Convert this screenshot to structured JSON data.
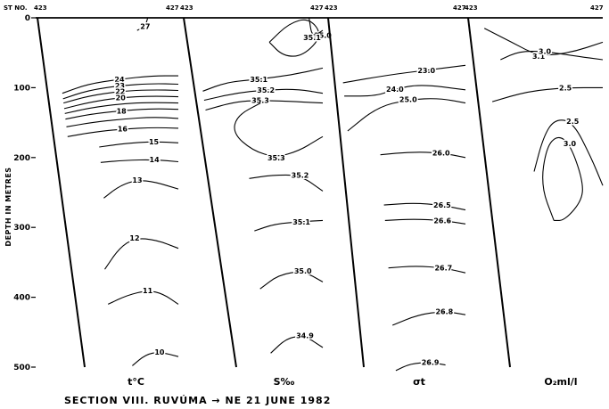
{
  "chart_data": {
    "type": "line",
    "title": "SECTION VIII.  RUVÚMA → NE   21 JUNE 1982",
    "st_label": "ST NO.",
    "ylabel": "DEPTH IN METRES",
    "y_ticks": [
      "0",
      "100",
      "200",
      "300",
      "400",
      "500"
    ],
    "ylim": [
      0,
      500
    ],
    "y_inverted": true,
    "grid": false,
    "stations": [
      "423",
      "427"
    ],
    "panels": [
      {
        "label": "t°C",
        "contours": [
          {
            "label": "27",
            "points": [
              [
                0.78,
                0
              ],
              [
                0.76,
                12
              ],
              [
                0.7,
                18
              ]
            ]
          },
          {
            "label": "24",
            "points": [
              [
                0.1,
                108
              ],
              [
                0.3,
                95
              ],
              [
                0.55,
                88
              ],
              [
                0.8,
                83
              ],
              [
                1.0,
                83
              ]
            ]
          },
          {
            "label": "23",
            "points": [
              [
                0.1,
                116
              ],
              [
                0.3,
                104
              ],
              [
                0.55,
                97
              ],
              [
                0.8,
                94
              ],
              [
                1.0,
                95
              ]
            ]
          },
          {
            "label": "22",
            "points": [
              [
                0.1,
                122
              ],
              [
                0.3,
                112
              ],
              [
                0.55,
                105
              ],
              [
                0.8,
                103
              ],
              [
                1.0,
                104
              ]
            ]
          },
          {
            "label": "20",
            "points": [
              [
                0.1,
                130
              ],
              [
                0.3,
                121
              ],
              [
                0.55,
                114
              ],
              [
                0.8,
                112
              ],
              [
                1.0,
                113
              ]
            ]
          },
          {
            "label": "",
            "points": [
              [
                0.1,
                137
              ],
              [
                0.3,
                129
              ],
              [
                0.55,
                123
              ],
              [
                0.8,
                121
              ],
              [
                1.0,
                122
              ]
            ]
          },
          {
            "label": "18",
            "points": [
              [
                0.1,
                145
              ],
              [
                0.3,
                138
              ],
              [
                0.55,
                133
              ],
              [
                0.8,
                130
              ],
              [
                1.0,
                131
              ]
            ]
          },
          {
            "label": "",
            "points": [
              [
                0.1,
                156
              ],
              [
                0.3,
                150
              ],
              [
                0.55,
                145
              ],
              [
                0.8,
                142
              ],
              [
                1.0,
                144
              ]
            ]
          },
          {
            "label": "16",
            "points": [
              [
                0.1,
                170
              ],
              [
                0.3,
                164
              ],
              [
                0.55,
                159
              ],
              [
                0.8,
                157
              ],
              [
                1.0,
                158
              ]
            ]
          },
          {
            "label": "15",
            "points": [
              [
                0.35,
                185
              ],
              [
                0.55,
                180
              ],
              [
                0.8,
                177
              ],
              [
                1.0,
                179
              ]
            ]
          },
          {
            "label": "14",
            "points": [
              [
                0.35,
                207
              ],
              [
                0.55,
                204
              ],
              [
                0.8,
                203
              ],
              [
                1.0,
                206
              ]
            ]
          },
          {
            "label": "13",
            "points": [
              [
                0.35,
                258
              ],
              [
                0.5,
                240
              ],
              [
                0.65,
                232
              ],
              [
                0.8,
                235
              ],
              [
                1.0,
                245
              ]
            ]
          },
          {
            "label": "12",
            "points": [
              [
                0.3,
                360
              ],
              [
                0.45,
                330
              ],
              [
                0.6,
                315
              ],
              [
                0.8,
                318
              ],
              [
                1.0,
                330
              ]
            ]
          },
          {
            "label": "11",
            "points": [
              [
                0.3,
                410
              ],
              [
                0.5,
                397
              ],
              [
                0.7,
                390
              ],
              [
                0.85,
                395
              ],
              [
                1.0,
                410
              ]
            ]
          },
          {
            "label": "10",
            "points": [
              [
                0.5,
                498
              ],
              [
                0.65,
                482
              ],
              [
                0.8,
                478
              ],
              [
                1.0,
                485
              ]
            ]
          }
        ]
      },
      {
        "label": "S‰",
        "contours": [
          {
            "label": "35.0",
            "points": [
              [
                0.6,
                35
              ],
              [
                0.75,
                8
              ],
              [
                0.9,
                0
              ],
              [
                1.0,
                25
              ],
              [
                0.85,
                55
              ],
              [
                0.7,
                55
              ],
              [
                0.6,
                35
              ]
            ]
          },
          {
            "label": "35.1",
            "points": [
              [
                1.0,
                18
              ],
              [
                0.92,
                28
              ],
              [
                0.9,
                0
              ]
            ]
          },
          {
            "label": "35.1",
            "points": [
              [
                0.05,
                105
              ],
              [
                0.25,
                92
              ],
              [
                0.5,
                88
              ],
              [
                0.75,
                82
              ],
              [
                1.0,
                72
              ]
            ]
          },
          {
            "label": "35.2",
            "points": [
              [
                0.05,
                118
              ],
              [
                0.3,
                108
              ],
              [
                0.55,
                103
              ],
              [
                0.8,
                102
              ],
              [
                1.0,
                108
              ]
            ]
          },
          {
            "label": "35.3",
            "points": [
              [
                0.05,
                132
              ],
              [
                0.3,
                120
              ],
              [
                0.5,
                118
              ],
              [
                0.8,
                120
              ],
              [
                1.0,
                122
              ]
            ]
          },
          {
            "label": "35.3",
            "points": [
              [
                0.5,
                122
              ],
              [
                0.3,
                140
              ],
              [
                0.25,
                165
              ],
              [
                0.4,
                190
              ],
              [
                0.6,
                200
              ],
              [
                0.8,
                190
              ],
              [
                0.95,
                175
              ],
              [
                1.0,
                170
              ]
            ]
          },
          {
            "label": "35.2",
            "points": [
              [
                0.35,
                230
              ],
              [
                0.55,
                225
              ],
              [
                0.8,
                225
              ],
              [
                1.0,
                248
              ]
            ]
          },
          {
            "label": "35.1",
            "points": [
              [
                0.35,
                305
              ],
              [
                0.55,
                295
              ],
              [
                0.8,
                292
              ],
              [
                1.0,
                290
              ]
            ]
          },
          {
            "label": "35.0",
            "points": [
              [
                0.35,
                388
              ],
              [
                0.55,
                368
              ],
              [
                0.8,
                362
              ],
              [
                1.0,
                378
              ]
            ]
          },
          {
            "label": "34.9",
            "points": [
              [
                0.4,
                480
              ],
              [
                0.6,
                458
              ],
              [
                0.8,
                455
              ],
              [
                1.0,
                472
              ]
            ]
          }
        ]
      },
      {
        "label": "σt",
        "contours": [
          {
            "label": "23.0",
            "points": [
              [
                0.05,
                93
              ],
              [
                0.4,
                82
              ],
              [
                0.7,
                75
              ],
              [
                1.0,
                68
              ]
            ]
          },
          {
            "label": "24.0",
            "points": [
              [
                0.05,
                112
              ],
              [
                0.3,
                112
              ],
              [
                0.45,
                102
              ],
              [
                0.65,
                95
              ],
              [
                1.0,
                103
              ]
            ]
          },
          {
            "label": "25.0",
            "points": [
              [
                0.05,
                162
              ],
              [
                0.3,
                128
              ],
              [
                0.55,
                117
              ],
              [
                0.8,
                115
              ],
              [
                1.0,
                122
              ]
            ]
          },
          {
            "label": "26.0",
            "points": [
              [
                0.3,
                196
              ],
              [
                0.55,
                192
              ],
              [
                0.8,
                193
              ],
              [
                1.0,
                200
              ]
            ]
          },
          {
            "label": "26.5",
            "points": [
              [
                0.3,
                268
              ],
              [
                0.55,
                265
              ],
              [
                0.8,
                268
              ],
              [
                1.0,
                275
              ]
            ]
          },
          {
            "label": "26.6",
            "points": [
              [
                0.3,
                290
              ],
              [
                0.55,
                288
              ],
              [
                0.8,
                290
              ],
              [
                1.0,
                295
              ]
            ]
          },
          {
            "label": "26.7",
            "points": [
              [
                0.3,
                358
              ],
              [
                0.55,
                355
              ],
              [
                0.8,
                358
              ],
              [
                1.0,
                365
              ]
            ]
          },
          {
            "label": "26.8",
            "points": [
              [
                0.3,
                440
              ],
              [
                0.55,
                425
              ],
              [
                0.8,
                420
              ],
              [
                1.0,
                425
              ]
            ]
          },
          {
            "label": "26.9",
            "points": [
              [
                0.3,
                505
              ],
              [
                0.45,
                495
              ],
              [
                0.65,
                493
              ],
              [
                0.8,
                497
              ]
            ]
          }
        ]
      },
      {
        "label": "O₂ml/l",
        "contours": [
          {
            "label": "3.1",
            "points": [
              [
                0.1,
                15
              ],
              [
                0.3,
                35
              ],
              [
                0.5,
                55
              ],
              [
                0.75,
                50
              ],
              [
                1.0,
                35
              ]
            ]
          },
          {
            "label": "3.0",
            "points": [
              [
                0.2,
                60
              ],
              [
                0.35,
                48
              ],
              [
                0.55,
                48
              ],
              [
                0.8,
                55
              ],
              [
                1.0,
                60
              ]
            ]
          },
          {
            "label": "2.5",
            "points": [
              [
                0.1,
                120
              ],
              [
                0.4,
                105
              ],
              [
                0.7,
                100
              ],
              [
                1.0,
                100
              ]
            ]
          },
          {
            "label": "2.5",
            "points": [
              [
                0.4,
                220
              ],
              [
                0.5,
                170
              ],
              [
                0.6,
                145
              ],
              [
                0.75,
                148
              ],
              [
                0.9,
                200
              ],
              [
                1.0,
                240
              ]
            ]
          },
          {
            "label": "3.0",
            "points": [
              [
                0.55,
                290
              ],
              [
                0.45,
                240
              ],
              [
                0.52,
                185
              ],
              [
                0.62,
                168
              ],
              [
                0.72,
                180
              ],
              [
                0.82,
                230
              ],
              [
                0.82,
                260
              ],
              [
                0.65,
                290
              ],
              [
                0.55,
                290
              ]
            ]
          }
        ]
      }
    ]
  }
}
